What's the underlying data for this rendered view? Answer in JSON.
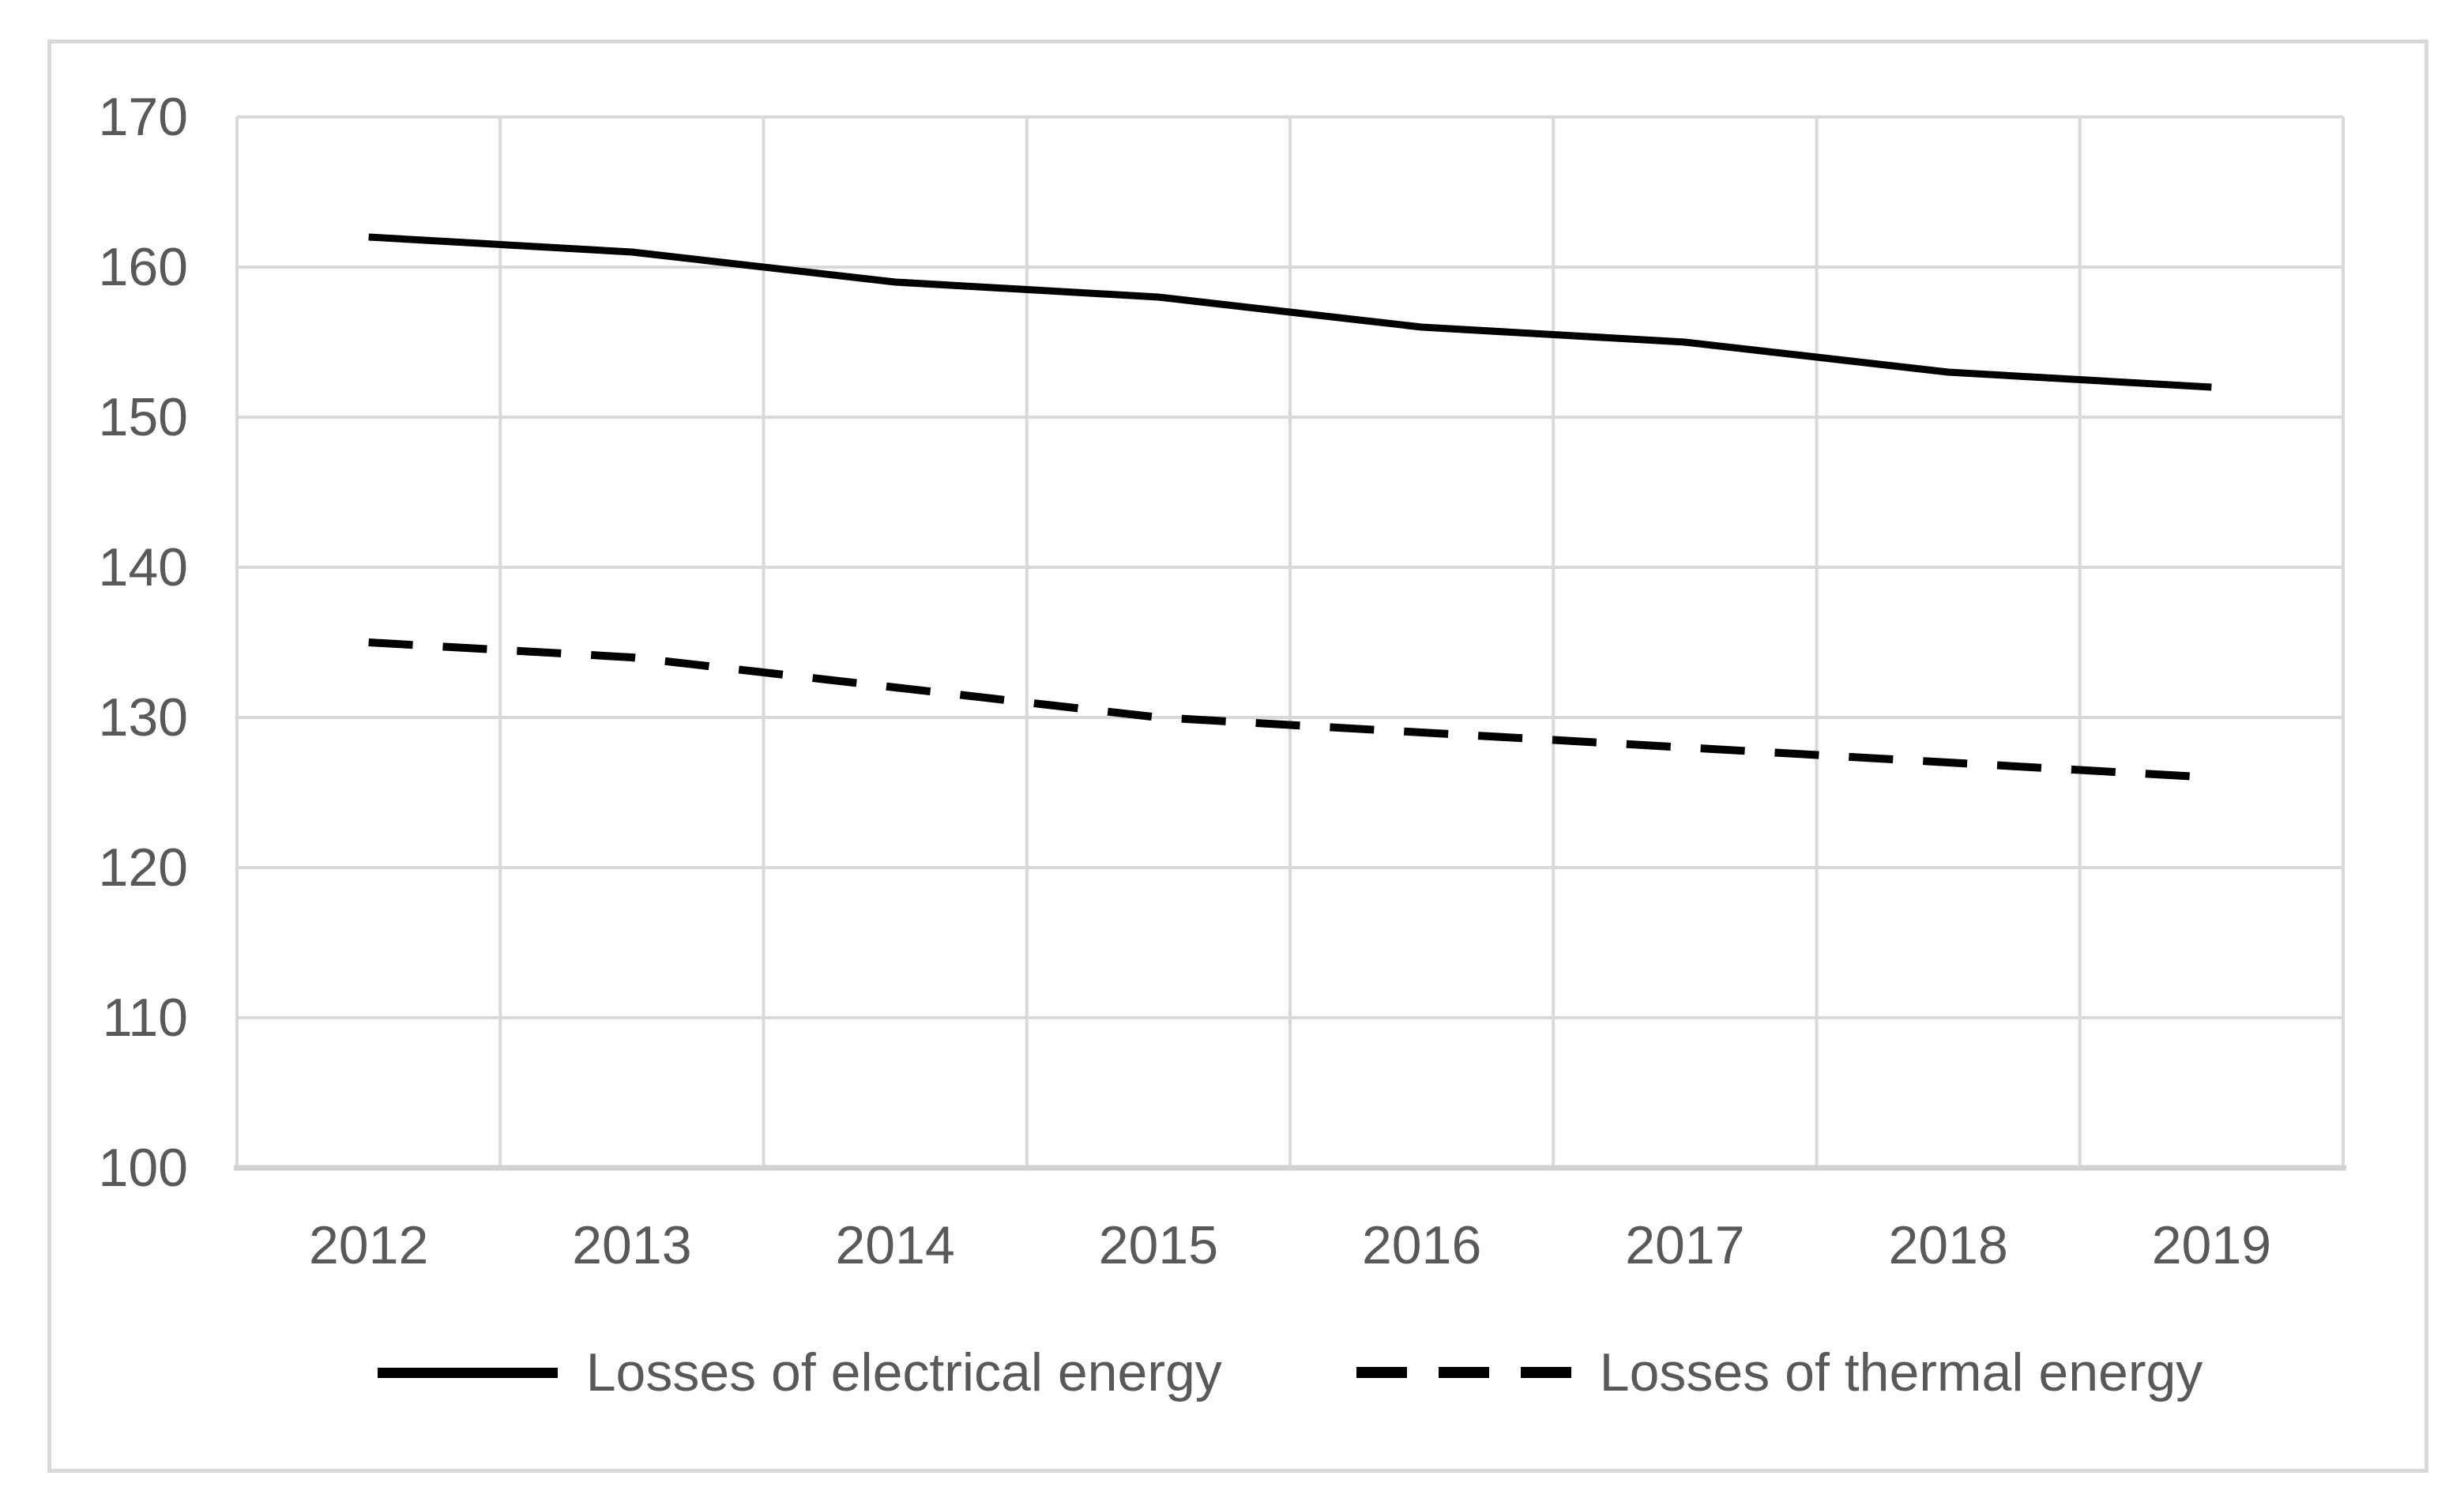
{
  "chart_data": {
    "type": "line",
    "title": "",
    "xlabel": "",
    "ylabel": "",
    "categories": [
      "2012",
      "2013",
      "2014",
      "2015",
      "2016",
      "2017",
      "2018",
      "2019"
    ],
    "series": [
      {
        "name": "Losses of electrical energy",
        "style": "solid",
        "color": "#000000",
        "values": [
          162,
          161,
          159,
          158,
          156,
          155,
          153,
          152
        ]
      },
      {
        "name": "Losses of thermal energy",
        "style": "dashed",
        "color": "#000000",
        "values": [
          135,
          134,
          132,
          130,
          129,
          128,
          127,
          126
        ]
      }
    ],
    "ylim": [
      100,
      170
    ],
    "yticks": [
      100,
      110,
      120,
      130,
      140,
      150,
      160,
      170
    ],
    "grid": true,
    "legend_position": "bottom"
  },
  "colors": {
    "grid": "#d9d9d9",
    "axis": "#d2d2d2",
    "tick_text": "#595959",
    "series_line": "#000000",
    "frame_border": "#d9d9d9",
    "background": "#ffffff"
  }
}
